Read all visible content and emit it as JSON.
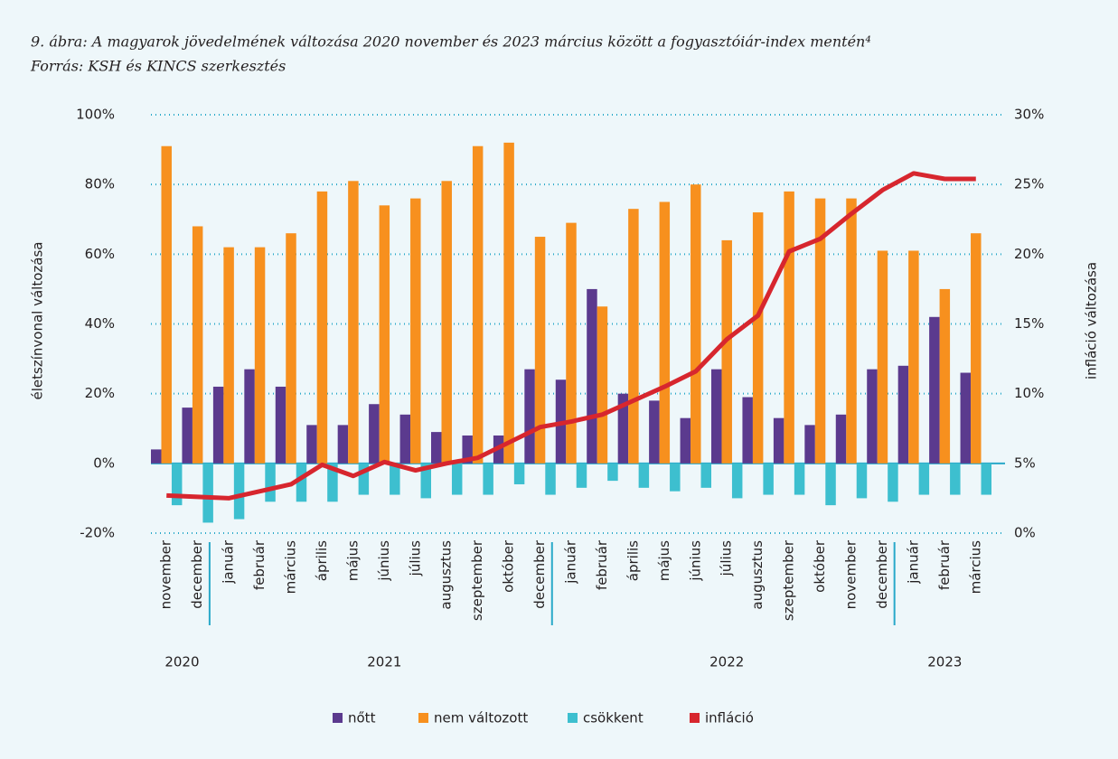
{
  "chart_data": {
    "type": "bar",
    "title": "9. ábra: A magyarok jövedelmének változása 2020 november és 2023 március között a fogyasztóiár-index mentén⁴",
    "subtitle": "Forrás: KSH és KINCS szerkesztés",
    "y_label": "életszínvonal változása",
    "y2_label": "infláció változása",
    "categories": [
      "november",
      "december",
      "január",
      "február",
      "március",
      "április",
      "május",
      "június",
      "július",
      "augusztus",
      "szeptember",
      "október",
      "december",
      "január",
      "február",
      "április",
      "május",
      "június",
      "július",
      "augusztus",
      "szeptember",
      "október",
      "november",
      "december",
      "január",
      "február",
      "március"
    ],
    "groups": [
      {
        "label": "2020",
        "count": 2
      },
      {
        "label": "2021",
        "count": 11
      },
      {
        "label": "2022",
        "count": 11
      },
      {
        "label": "2023",
        "count": 3
      }
    ],
    "series": [
      {
        "name": "nőtt",
        "type": "bar",
        "color": "#5b3a8e",
        "values": [
          4,
          16,
          22,
          27,
          22,
          11,
          11,
          17,
          14,
          9,
          8,
          8,
          27,
          24,
          50,
          20,
          18,
          13,
          27,
          19,
          13,
          11,
          14,
          27,
          28,
          42,
          26
        ]
      },
      {
        "name": "nem változott",
        "type": "bar",
        "color": "#f7901e",
        "values": [
          91,
          68,
          62,
          62,
          66,
          78,
          81,
          74,
          76,
          81,
          91,
          92,
          65,
          69,
          45,
          73,
          75,
          80,
          64,
          72,
          78,
          76,
          76,
          61,
          61,
          50,
          66
        ]
      },
      {
        "name": "csökkent",
        "type": "bar",
        "color": "#3dbfcf",
        "values": [
          -12,
          -17,
          -16,
          -11,
          -11,
          -11,
          -9,
          -9,
          -10,
          -9,
          -9,
          -6,
          -9,
          -7,
          -5,
          -7,
          -8,
          -7,
          -10,
          -9,
          -9,
          -12,
          -10,
          -11,
          -9,
          -9,
          -9
        ]
      },
      {
        "name": "infláció",
        "type": "line",
        "axis": "y2",
        "color": "#d7262e",
        "values": [
          2.7,
          2.6,
          2.5,
          3.0,
          3.5,
          4.9,
          4.1,
          5.1,
          4.5,
          5.0,
          5.4,
          6.5,
          7.6,
          8.0,
          8.5,
          9.5,
          10.5,
          11.6,
          13.9,
          15.6,
          20.2,
          21.1,
          22.9,
          24.6,
          25.8,
          25.4,
          25.4
        ]
      }
    ],
    "ylim": [
      -20,
      100
    ],
    "yticks": [
      {
        "value": -20,
        "label": "-20%"
      },
      {
        "value": 0,
        "label": "0%"
      },
      {
        "value": 20,
        "label": "20%"
      },
      {
        "value": 40,
        "label": "40%"
      },
      {
        "value": 60,
        "label": "60%"
      },
      {
        "value": 80,
        "label": "80%"
      },
      {
        "value": 100,
        "label": "100%"
      }
    ],
    "y2lim": [
      0,
      30
    ],
    "y2ticks": [
      {
        "value": 0,
        "label": "0%"
      },
      {
        "value": 5,
        "label": "5%"
      },
      {
        "value": 10,
        "label": "10%"
      },
      {
        "value": 15,
        "label": "15%"
      },
      {
        "value": 20,
        "label": "20%"
      },
      {
        "value": 25,
        "label": "25%"
      },
      {
        "value": 30,
        "label": "30%"
      }
    ],
    "grid": true,
    "legend": "bottom"
  }
}
